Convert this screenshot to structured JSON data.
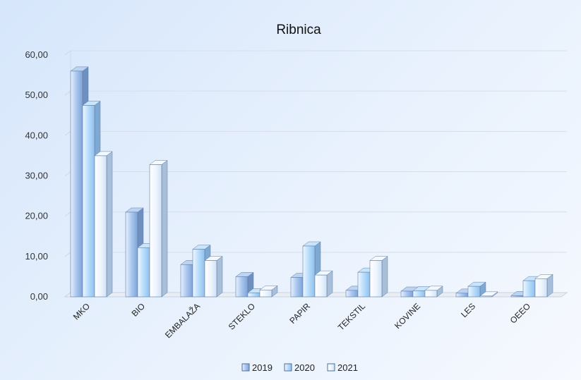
{
  "chart_data": {
    "type": "bar",
    "title": "Ribnica",
    "categories": [
      "MKO",
      "BIO",
      "EMBALAŽA",
      "STEKLO",
      "PAPIR",
      "TEKSTIL",
      "KOVINE",
      "LES",
      "OEEO"
    ],
    "series": [
      {
        "name": "2019",
        "color": "#a9c6ee",
        "values": [
          56.0,
          21.0,
          8.0,
          5.0,
          4.8,
          1.6,
          1.4,
          0.9,
          0.3
        ]
      },
      {
        "name": "2020",
        "color": "#b8dcfb",
        "values": [
          47.5,
          12.2,
          11.8,
          1.0,
          12.6,
          6.1,
          1.5,
          2.6,
          4.0
        ]
      },
      {
        "name": "2021",
        "color": "#e6f2fd",
        "values": [
          35.0,
          32.8,
          9.0,
          1.7,
          5.4,
          9.0,
          1.6,
          0.2,
          4.5
        ]
      }
    ],
    "y_ticks": [
      "0,00",
      "10,00",
      "20,00",
      "30,00",
      "40,00",
      "50,00",
      "60,00"
    ],
    "ylim": [
      0,
      60
    ],
    "grid": true,
    "legend_position": "bottom"
  }
}
